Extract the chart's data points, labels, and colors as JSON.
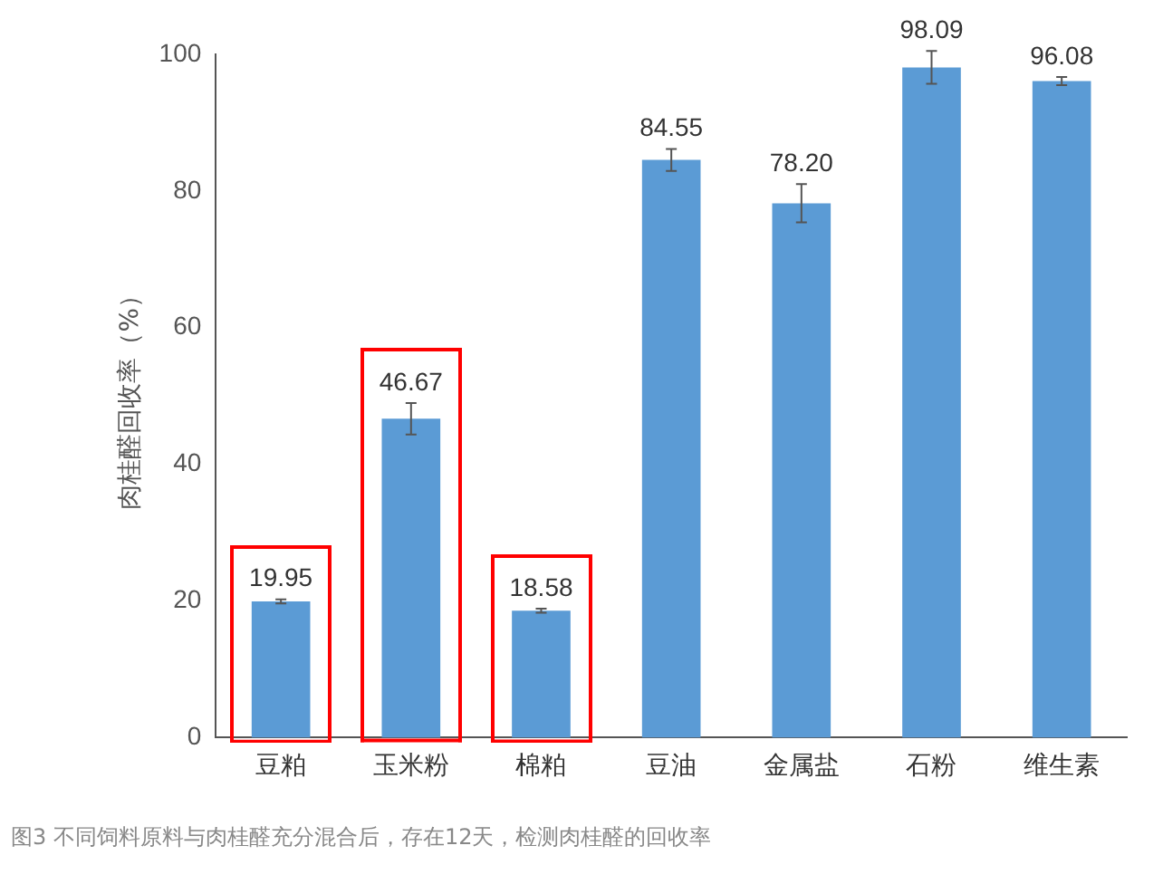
{
  "chart_data": {
    "type": "bar",
    "ylabel": "肉桂醛回收率（%）",
    "categories": [
      "豆粕",
      "玉米粉",
      "棉粕",
      "豆油",
      "金属盐",
      "石粉",
      "维生素"
    ],
    "values": [
      19.95,
      46.67,
      18.58,
      84.55,
      78.2,
      98.09,
      96.08
    ],
    "errors": [
      0.3,
      2.3,
      0.3,
      1.6,
      2.8,
      2.4,
      0.6
    ],
    "color": "#5b9bd5",
    "ylim": [
      0,
      100
    ],
    "yticks": [
      0,
      20,
      40,
      60,
      80,
      100
    ],
    "grid": false,
    "legend": false,
    "value_labels": [
      "19.95",
      "46.67",
      "18.58",
      "84.55",
      "78.20",
      "98.09",
      "96.08"
    ],
    "annotations": [
      "图3 不同饲料原料与肉桂醛充分混合后，存在12天，检测肉桂醛的回收率"
    ]
  }
}
